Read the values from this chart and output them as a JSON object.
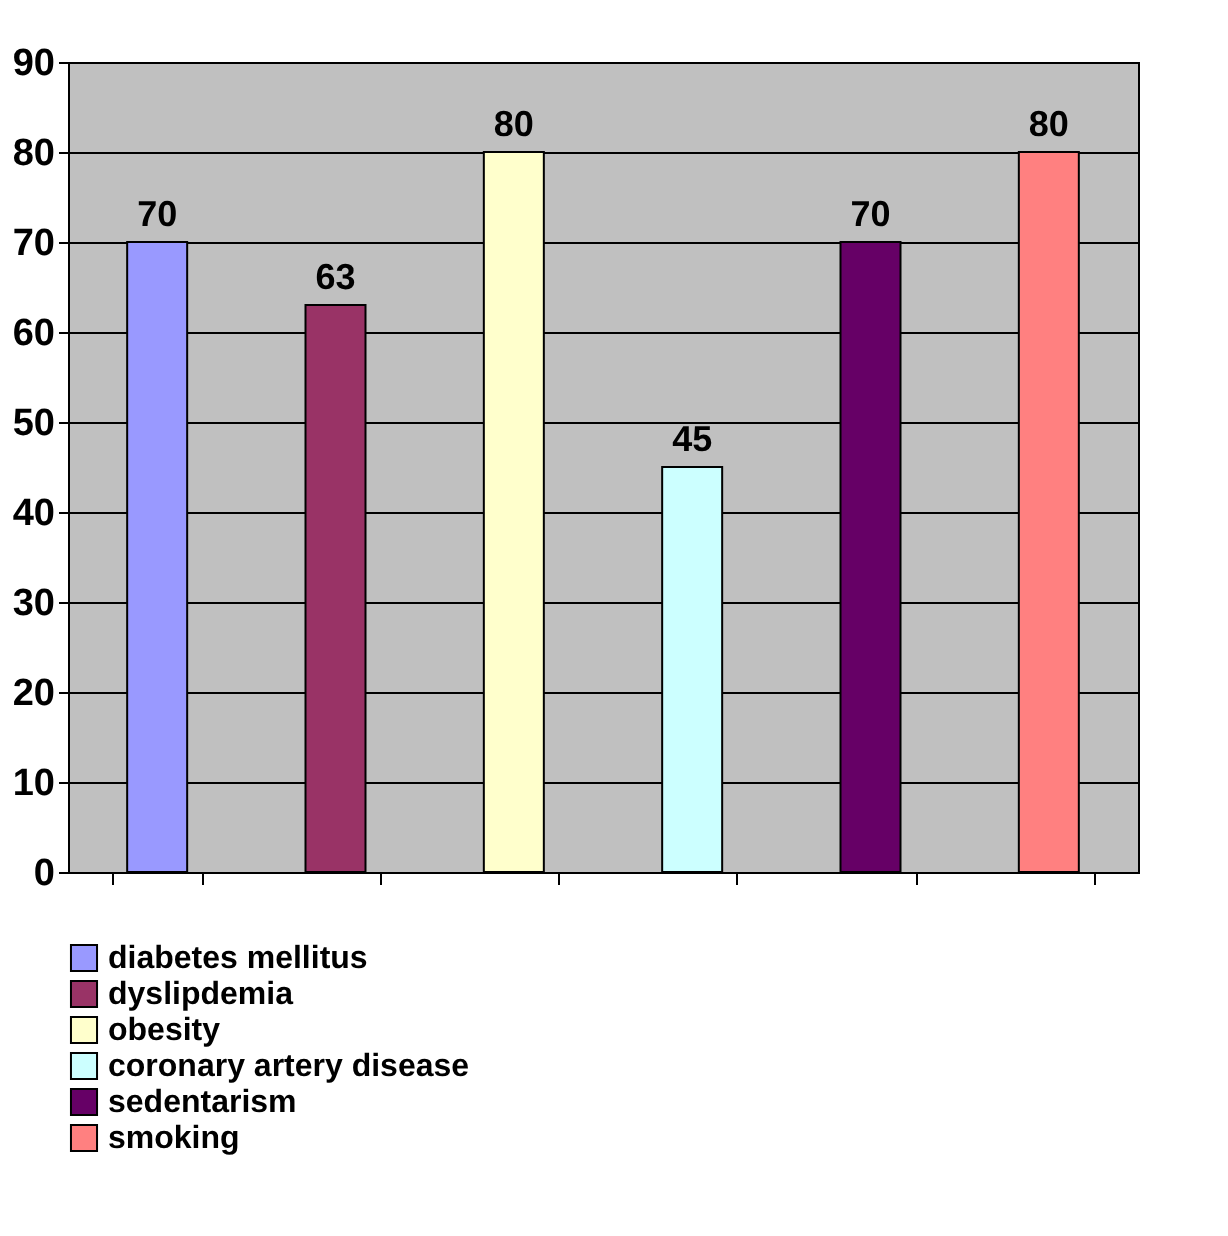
{
  "chart_data": {
    "type": "bar",
    "categories": [
      null,
      null,
      null,
      null,
      null,
      null
    ],
    "series": [
      {
        "name": "diabetes mellitus",
        "color": "#9999ff",
        "values": [
          70,
          null,
          null,
          null,
          null,
          null
        ]
      },
      {
        "name": "dyslipdemia",
        "color": "#993366",
        "values": [
          null,
          63,
          null,
          null,
          null,
          null
        ]
      },
      {
        "name": "obesity",
        "color": "#ffffcc",
        "values": [
          null,
          null,
          80,
          null,
          null,
          null
        ]
      },
      {
        "name": "coronary artery disease",
        "color": "#ccffff",
        "values": [
          null,
          null,
          null,
          45,
          null,
          null
        ]
      },
      {
        "name": "sedentarism",
        "color": "#660066",
        "values": [
          null,
          null,
          null,
          null,
          70,
          null
        ]
      },
      {
        "name": "smoking",
        "color": "#ff8080",
        "values": [
          null,
          null,
          null,
          null,
          null,
          80
        ]
      }
    ],
    "ylim": [
      0,
      90
    ],
    "yticks": [
      0,
      10,
      20,
      30,
      40,
      50,
      60,
      70,
      80,
      90
    ],
    "grid": "y",
    "data_labels": true,
    "legend": "bottom",
    "tick_labels": "y"
  }
}
